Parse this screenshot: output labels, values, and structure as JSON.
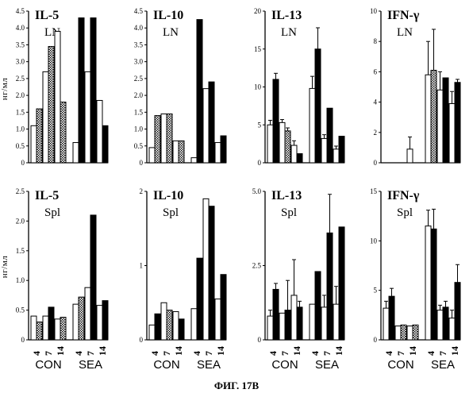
{
  "figure_caption": "ФИГ. 17В",
  "ylabels": [
    "нг/мл",
    "нг/мл"
  ],
  "x_groups": [
    "CON",
    "SEA"
  ],
  "x_days": [
    "4",
    "7",
    "14"
  ],
  "chart_data": [
    {
      "type": "bar",
      "title": "IL-5",
      "subtitle": "LN",
      "ylim": [
        0,
        4.5
      ],
      "yticks": [
        "0",
        "0.5",
        "1.0",
        "1.5",
        "2.0",
        "2.5",
        "3.0",
        "3.5",
        "4.0",
        "4.5"
      ],
      "show_x_labels": false,
      "bars": [
        {
          "v": 1.1,
          "f": "white"
        },
        {
          "v": 1.6,
          "f": "dot"
        },
        {
          "v": 2.7,
          "f": "white"
        },
        {
          "v": 3.45,
          "f": "dot"
        },
        {
          "v": 3.9,
          "f": "white"
        },
        {
          "v": 1.8,
          "f": "dot"
        },
        {
          "v": 0.6,
          "f": "white"
        },
        {
          "v": 4.3,
          "f": "black"
        },
        {
          "v": 2.7,
          "f": "white"
        },
        {
          "v": 4.3,
          "f": "black"
        },
        {
          "v": 1.85,
          "f": "white"
        },
        {
          "v": 1.1,
          "f": "black"
        }
      ]
    },
    {
      "type": "bar",
      "title": "IL-10",
      "subtitle": "LN",
      "ylim": [
        0,
        4.5
      ],
      "yticks": [
        "0",
        "0.5",
        "1.0",
        "1.5",
        "2.0",
        "2.5",
        "3.0",
        "3.5",
        "4.0",
        "4.5"
      ],
      "show_x_labels": false,
      "bars": [
        {
          "v": 0.45,
          "f": "white"
        },
        {
          "v": 1.4,
          "f": "dot"
        },
        {
          "v": 1.45,
          "f": "white"
        },
        {
          "v": 1.45,
          "f": "dot"
        },
        {
          "v": 0.65,
          "f": "white"
        },
        {
          "v": 0.65,
          "f": "dot"
        },
        {
          "v": 0.15,
          "f": "white"
        },
        {
          "v": 4.25,
          "f": "black"
        },
        {
          "v": 2.2,
          "f": "white"
        },
        {
          "v": 2.4,
          "f": "black"
        },
        {
          "v": 0.6,
          "f": "white"
        },
        {
          "v": 0.8,
          "f": "black"
        }
      ]
    },
    {
      "type": "bar",
      "title": "IL-13",
      "subtitle": "LN",
      "ylim": [
        0,
        20
      ],
      "yticks": [
        "0",
        "5",
        "10",
        "15",
        "20"
      ],
      "show_x_labels": false,
      "bars": [
        {
          "v": 5.0,
          "f": "white",
          "e": 0.6
        },
        {
          "v": 11.0,
          "f": "black",
          "e": 0.8
        },
        {
          "v": 5.3,
          "f": "white",
          "e": 0.4
        },
        {
          "v": 4.2,
          "f": "dot",
          "e": 0.4
        },
        {
          "v": 2.3,
          "f": "white",
          "e": 0.6
        },
        {
          "v": 1.2,
          "f": "black"
        },
        {
          "v": 9.8,
          "f": "white",
          "e": 1.6
        },
        {
          "v": 15.0,
          "f": "black",
          "e": 2.8
        },
        {
          "v": 3.2,
          "f": "white",
          "e": 0.5
        },
        {
          "v": 7.2,
          "f": "black"
        },
        {
          "v": 1.8,
          "f": "white",
          "e": 0.4
        },
        {
          "v": 3.5,
          "f": "black"
        }
      ]
    },
    {
      "type": "bar",
      "title": "IFN-γ",
      "subtitle": "LN",
      "ylim": [
        0,
        10
      ],
      "yticks": [
        "0",
        "2",
        "4",
        "6",
        "8",
        "10"
      ],
      "show_x_labels": false,
      "bars": [
        {
          "v": 0,
          "f": "white"
        },
        {
          "v": 0,
          "f": "dot"
        },
        {
          "v": 0,
          "f": "white"
        },
        {
          "v": 0,
          "f": "dot"
        },
        {
          "v": 0.9,
          "f": "white",
          "e": 0.8
        },
        {
          "v": 0,
          "f": "dot"
        },
        {
          "v": 5.8,
          "f": "white",
          "e": 2.2
        },
        {
          "v": 6.1,
          "f": "dot",
          "e": 2.7
        },
        {
          "v": 4.8,
          "f": "white",
          "e": 1.2
        },
        {
          "v": 5.6,
          "f": "black"
        },
        {
          "v": 3.9,
          "f": "white",
          "e": 0.8
        },
        {
          "v": 5.3,
          "f": "black",
          "e": 0.2
        }
      ]
    },
    {
      "type": "bar",
      "title": "IL-5",
      "subtitle": "Spl",
      "ylim": [
        0,
        2.5
      ],
      "yticks": [
        "0",
        "0.5",
        "1.0",
        "1.5",
        "2.0",
        "2.5"
      ],
      "show_x_labels": true,
      "bars": [
        {
          "v": 0.4,
          "f": "white"
        },
        {
          "v": 0.3,
          "f": "dot"
        },
        {
          "v": 0.4,
          "f": "white"
        },
        {
          "v": 0.55,
          "f": "black"
        },
        {
          "v": 0.35,
          "f": "white"
        },
        {
          "v": 0.38,
          "f": "dot"
        },
        {
          "v": 0.6,
          "f": "white"
        },
        {
          "v": 0.72,
          "f": "dot"
        },
        {
          "v": 0.88,
          "f": "white"
        },
        {
          "v": 2.1,
          "f": "black"
        },
        {
          "v": 0.58,
          "f": "white"
        },
        {
          "v": 0.66,
          "f": "black"
        }
      ]
    },
    {
      "type": "bar",
      "title": "IL-10",
      "subtitle": "Spl",
      "ylim": [
        0,
        2
      ],
      "yticks": [
        "0",
        "1",
        "2"
      ],
      "show_x_labels": true,
      "bars": [
        {
          "v": 0.2,
          "f": "white"
        },
        {
          "v": 0.35,
          "f": "black"
        },
        {
          "v": 0.5,
          "f": "white"
        },
        {
          "v": 0.4,
          "f": "dot"
        },
        {
          "v": 0.38,
          "f": "white"
        },
        {
          "v": 0.28,
          "f": "black"
        },
        {
          "v": 0.42,
          "f": "white"
        },
        {
          "v": 1.1,
          "f": "black"
        },
        {
          "v": 1.9,
          "f": "white"
        },
        {
          "v": 1.8,
          "f": "black"
        },
        {
          "v": 0.55,
          "f": "white"
        },
        {
          "v": 0.88,
          "f": "black"
        }
      ]
    },
    {
      "type": "bar",
      "title": "IL-13",
      "subtitle": "Spl",
      "ylim": [
        0,
        5
      ],
      "yticks": [
        "0",
        "2.5",
        "5.0"
      ],
      "show_x_labels": true,
      "bars": [
        {
          "v": 0.8,
          "f": "white",
          "e": 0.2
        },
        {
          "v": 1.7,
          "f": "black",
          "e": 0.2
        },
        {
          "v": 0.9,
          "f": "white"
        },
        {
          "v": 1.0,
          "f": "black",
          "e": 1.0
        },
        {
          "v": 1.5,
          "f": "white",
          "e": 1.2
        },
        {
          "v": 1.1,
          "f": "black",
          "e": 0.2
        },
        {
          "v": 1.2,
          "f": "white"
        },
        {
          "v": 2.3,
          "f": "black"
        },
        {
          "v": 1.1,
          "f": "white",
          "e": 0.4
        },
        {
          "v": 3.6,
          "f": "black",
          "e": 1.3
        },
        {
          "v": 1.2,
          "f": "white",
          "e": 0.6
        },
        {
          "v": 3.8,
          "f": "black"
        }
      ]
    },
    {
      "type": "bar",
      "title": "IFN-γ",
      "subtitle": "Spl",
      "ylim": [
        0,
        15
      ],
      "yticks": [
        "0",
        "5",
        "10",
        "15"
      ],
      "show_x_labels": true,
      "bars": [
        {
          "v": 3.2,
          "f": "white",
          "e": 0.7
        },
        {
          "v": 4.4,
          "f": "black",
          "e": 0.8
        },
        {
          "v": 1.4,
          "f": "white"
        },
        {
          "v": 1.5,
          "f": "dot"
        },
        {
          "v": 1.4,
          "f": "white"
        },
        {
          "v": 1.5,
          "f": "dot"
        },
        {
          "v": 11.5,
          "f": "white",
          "e": 1.6
        },
        {
          "v": 11.2,
          "f": "black",
          "e": 2.0
        },
        {
          "v": 3.0,
          "f": "white",
          "e": 0.5
        },
        {
          "v": 3.3,
          "f": "black",
          "e": 0.6
        },
        {
          "v": 2.2,
          "f": "white",
          "e": 0.8
        },
        {
          "v": 5.8,
          "f": "black",
          "e": 1.8
        }
      ]
    }
  ]
}
